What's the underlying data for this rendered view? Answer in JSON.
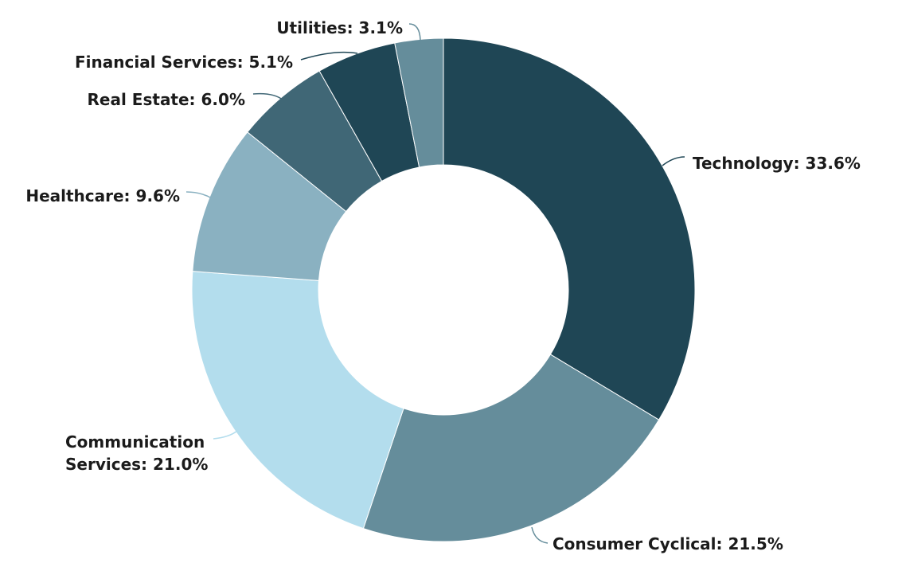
{
  "chart_data": {
    "type": "pie",
    "variant": "donut",
    "title": "",
    "legend": "none",
    "start_angle_deg": 0,
    "direction": "clockwise",
    "slices": [
      {
        "label": "Technology",
        "value": 33.6,
        "display": "Technology: 33.6%",
        "color": "#1f4655"
      },
      {
        "label": "Consumer Cyclical",
        "value": 21.5,
        "display": "Consumer Cyclical: 21.5%",
        "color": "#658d9b"
      },
      {
        "label": "Communication Services",
        "value": 21.0,
        "display": "Communication Services: 21.0%",
        "display_lines": [
          "Communication",
          "Services: 21.0%"
        ],
        "color": "#b3dded"
      },
      {
        "label": "Healthcare",
        "value": 9.6,
        "display": "Healthcare: 9.6%",
        "color": "#8ab1c1"
      },
      {
        "label": "Real Estate",
        "value": 6.0,
        "display": "Real Estate: 6.0%",
        "color": "#406776"
      },
      {
        "label": "Financial Services",
        "value": 5.1,
        "display": "Financial Services: 5.1%",
        "color": "#1f4655"
      },
      {
        "label": "Utilities",
        "value": 3.1,
        "display": "Utilities: 3.1%",
        "color": "#658d9b"
      }
    ]
  }
}
